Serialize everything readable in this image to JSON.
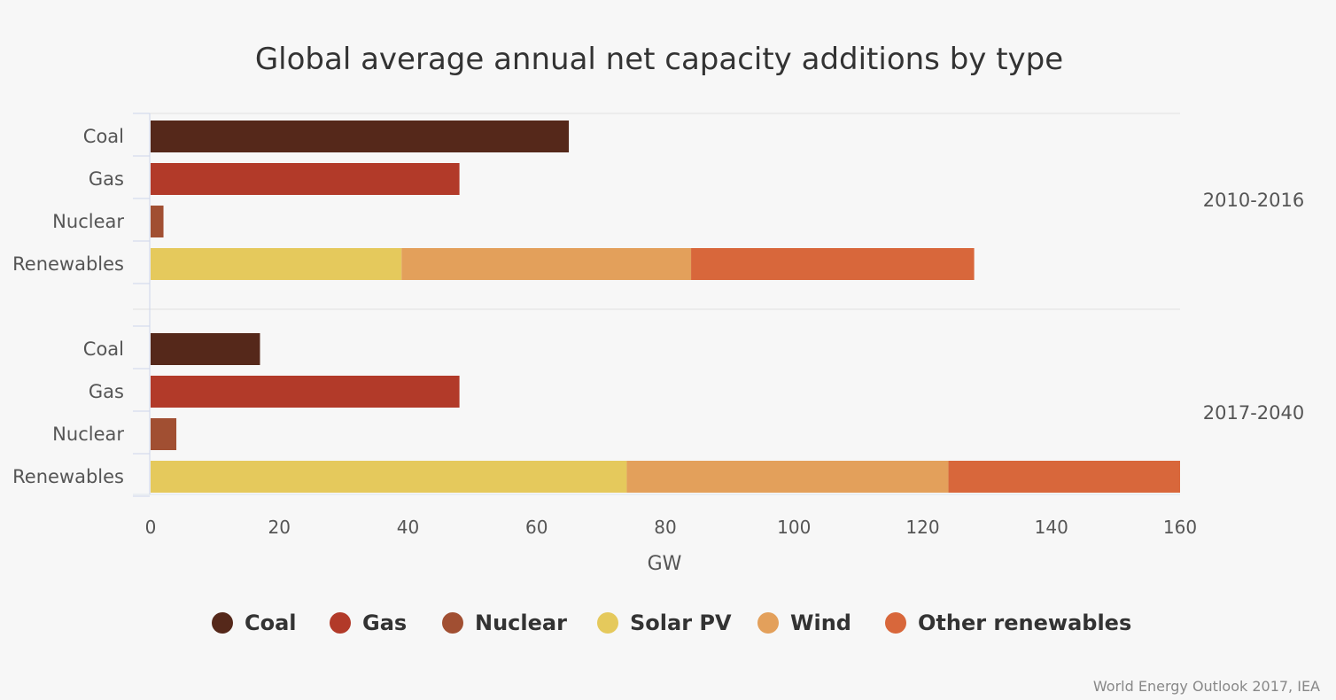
{
  "chart_data": {
    "type": "bar",
    "orientation": "horizontal",
    "stacked": true,
    "title": "Global average annual net capacity additions by type",
    "xlabel": "GW",
    "xlim": [
      0,
      160
    ],
    "xticks": [
      "0",
      "20",
      "40",
      "60",
      "80",
      "100",
      "120",
      "140",
      "160"
    ],
    "grid": false,
    "legend_position": "bottom",
    "groups": [
      {
        "label": "2010-2016",
        "categories": [
          "Coal",
          "Gas",
          "Nuclear",
          "Renewables"
        ],
        "rows": [
          {
            "category": "Coal",
            "segments": [
              {
                "series": "Coal",
                "value": 65
              }
            ]
          },
          {
            "category": "Gas",
            "segments": [
              {
                "series": "Gas",
                "value": 48
              }
            ]
          },
          {
            "category": "Nuclear",
            "segments": [
              {
                "series": "Nuclear",
                "value": 2
              }
            ]
          },
          {
            "category": "Renewables",
            "segments": [
              {
                "series": "Solar PV",
                "value": 39
              },
              {
                "series": "Wind",
                "value": 45
              },
              {
                "series": "Other renewables",
                "value": 44
              }
            ]
          }
        ]
      },
      {
        "label": "2017-2040",
        "categories": [
          "Coal",
          "Gas",
          "Nuclear",
          "Renewables"
        ],
        "rows": [
          {
            "category": "Coal",
            "segments": [
              {
                "series": "Coal",
                "value": 17
              }
            ]
          },
          {
            "category": "Gas",
            "segments": [
              {
                "series": "Gas",
                "value": 48
              }
            ]
          },
          {
            "category": "Nuclear",
            "segments": [
              {
                "series": "Nuclear",
                "value": 4
              }
            ]
          },
          {
            "category": "Renewables",
            "segments": [
              {
                "series": "Solar PV",
                "value": 74
              },
              {
                "series": "Wind",
                "value": 50
              },
              {
                "series": "Other renewables",
                "value": 36
              }
            ]
          }
        ]
      }
    ],
    "series": [
      {
        "name": "Coal",
        "color": "#55281a"
      },
      {
        "name": "Gas",
        "color": "#b23a29"
      },
      {
        "name": "Nuclear",
        "color": "#a14f32"
      },
      {
        "name": "Solar PV",
        "color": "#e5c95c"
      },
      {
        "name": "Wind",
        "color": "#e3a05b"
      },
      {
        "name": "Other renewables",
        "color": "#d8673b"
      }
    ]
  },
  "source": "World Energy Outlook 2017, IEA"
}
